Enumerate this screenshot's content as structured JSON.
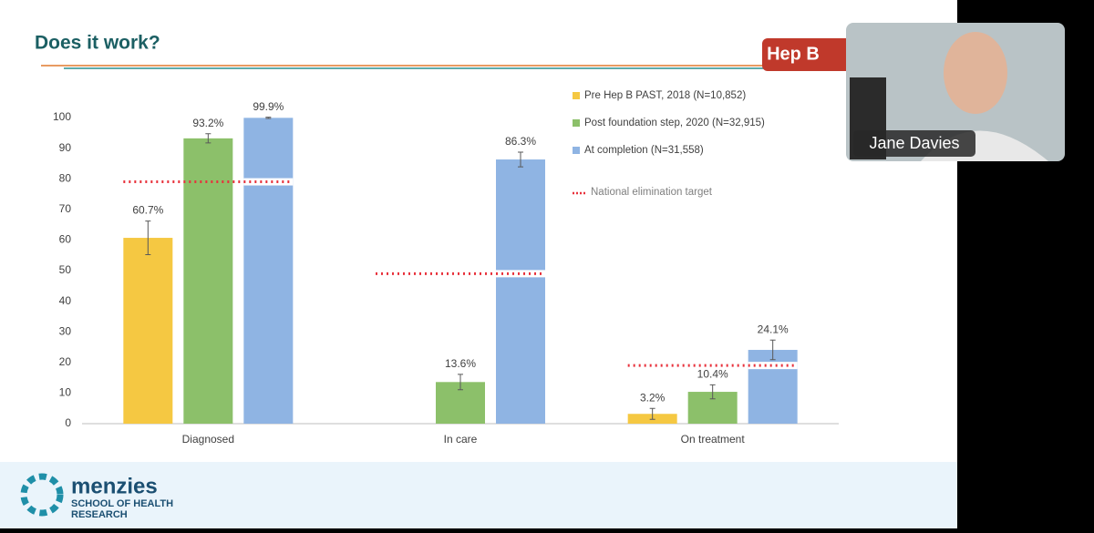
{
  "slide": {
    "title": "Does it work?",
    "logo_top": "Hep B",
    "org": {
      "name": "menzies",
      "line1": "SCHOOL OF HEALTH",
      "line2": "RESEARCH"
    }
  },
  "video": {
    "participant": "Jane Davies"
  },
  "chart_data": {
    "type": "bar",
    "categories": [
      "Diagnosed",
      "In care",
      "On treatment"
    ],
    "series": [
      {
        "name": "Pre Hep B PAST, 2018 (N=10,852)",
        "color": "#f5c842",
        "values": [
          60.7,
          null,
          3.2
        ],
        "errors": [
          5.5,
          null,
          1.8
        ],
        "value_labels": [
          "60.7%",
          null,
          "3.2%"
        ]
      },
      {
        "name": "Post foundation step, 2020 (N=32,915)",
        "color": "#8cc06a",
        "values": [
          93.2,
          13.6,
          10.4
        ],
        "errors": [
          1.5,
          2.5,
          2.3
        ],
        "value_labels": [
          "93.2%",
          "13.6%",
          "10.4%"
        ]
      },
      {
        "name": "At completion (N=31,558)",
        "color": "#8fb4e3",
        "values": [
          99.9,
          86.3,
          24.1
        ],
        "errors": [
          0.2,
          2.4,
          3.2
        ],
        "value_labels": [
          "99.9%",
          "86.3%",
          "24.1%"
        ]
      }
    ],
    "target": {
      "name": "National elimination target",
      "color": "#e8323c",
      "values": [
        79,
        49,
        19
      ]
    },
    "ylim": [
      0,
      100
    ],
    "yticks": [
      0,
      10,
      20,
      30,
      40,
      50,
      60,
      70,
      80,
      90,
      100
    ],
    "grid": false
  }
}
